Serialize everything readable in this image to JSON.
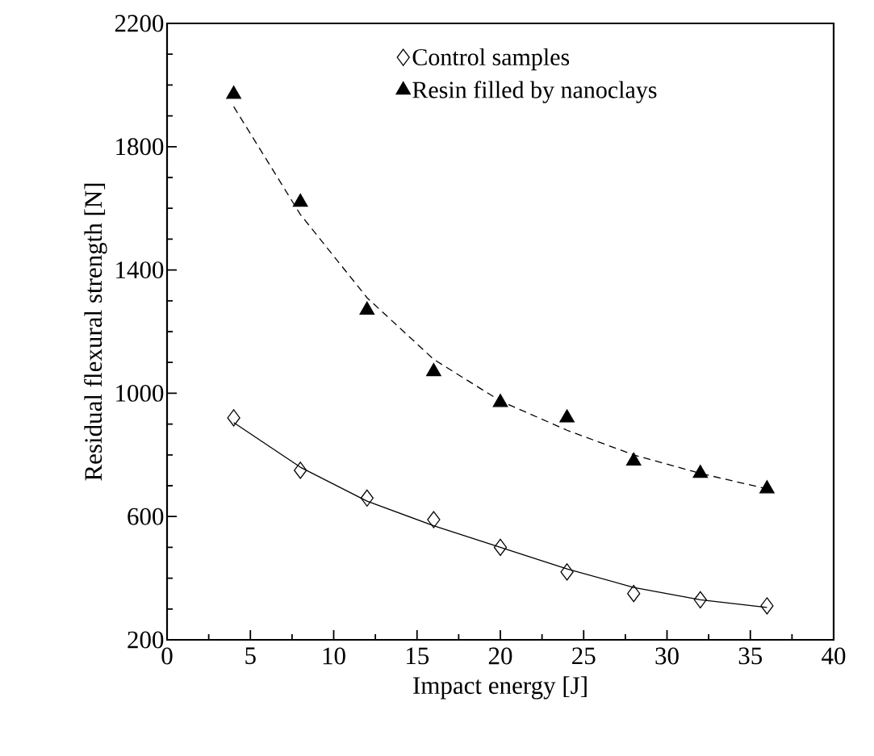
{
  "chart_data": {
    "type": "scatter",
    "xlabel": "Impact energy [J]",
    "ylabel": "Residual flexural strength [N]",
    "xlim": [
      0,
      40
    ],
    "xticks": [
      0,
      5,
      10,
      15,
      20,
      25,
      30,
      35,
      40
    ],
    "ylim": [
      200,
      2200
    ],
    "yticks": [
      200,
      600,
      1000,
      1400,
      1800,
      2200
    ],
    "grid": false,
    "legend": "top right",
    "series": [
      {
        "name": "Control samples",
        "marker": "diamond",
        "color": "#000000",
        "x": [
          4,
          8,
          12,
          16,
          20,
          24,
          28,
          32,
          36
        ],
        "values": [
          920,
          750,
          660,
          590,
          500,
          420,
          350,
          330,
          310
        ]
      },
      {
        "name": "Resin filled by nanoclays",
        "marker": "triangle",
        "color": "#000000",
        "x": [
          4,
          8,
          12,
          16,
          20,
          24,
          28,
          32,
          36
        ],
        "values": [
          1970,
          1620,
          1270,
          1070,
          970,
          920,
          780,
          740,
          690
        ]
      },
      {
        "type": "line",
        "marker": "none",
        "line_style": "solid",
        "color": "#000000",
        "x": [
          4,
          8,
          12,
          16,
          20,
          24,
          28,
          32,
          36
        ],
        "values": [
          905,
          760,
          650,
          570,
          500,
          430,
          370,
          330,
          305
        ]
      },
      {
        "type": "line",
        "marker": "none",
        "line_style": "dashed",
        "color": "#000000",
        "x": [
          4,
          8,
          12,
          16,
          20,
          24,
          28,
          32,
          36
        ],
        "values": [
          1930,
          1580,
          1310,
          1110,
          975,
          880,
          800,
          740,
          690
        ]
      }
    ]
  }
}
